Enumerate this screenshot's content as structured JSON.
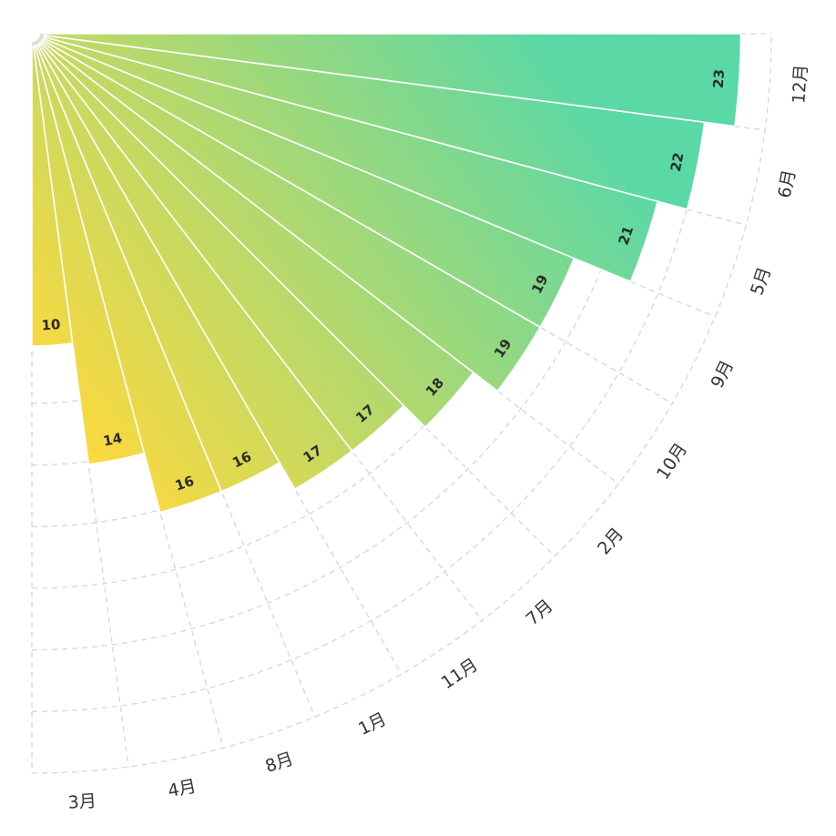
{
  "chart_data": {
    "type": "bar",
    "layout": "polar-radial-quarter",
    "title": "",
    "categories": [
      "3月",
      "4月",
      "8月",
      "1月",
      "11月",
      "7月",
      "2月",
      "10月",
      "9月",
      "5月",
      "6月",
      "12月"
    ],
    "values": [
      10,
      14,
      16,
      16,
      17,
      17,
      18,
      19,
      19,
      21,
      22,
      23
    ],
    "radial_max": 24,
    "radial_ticks": 12,
    "grid": true,
    "show_value_labels": true,
    "colors": {
      "start": "#ffd93d",
      "end": "#5ad8a6"
    }
  }
}
